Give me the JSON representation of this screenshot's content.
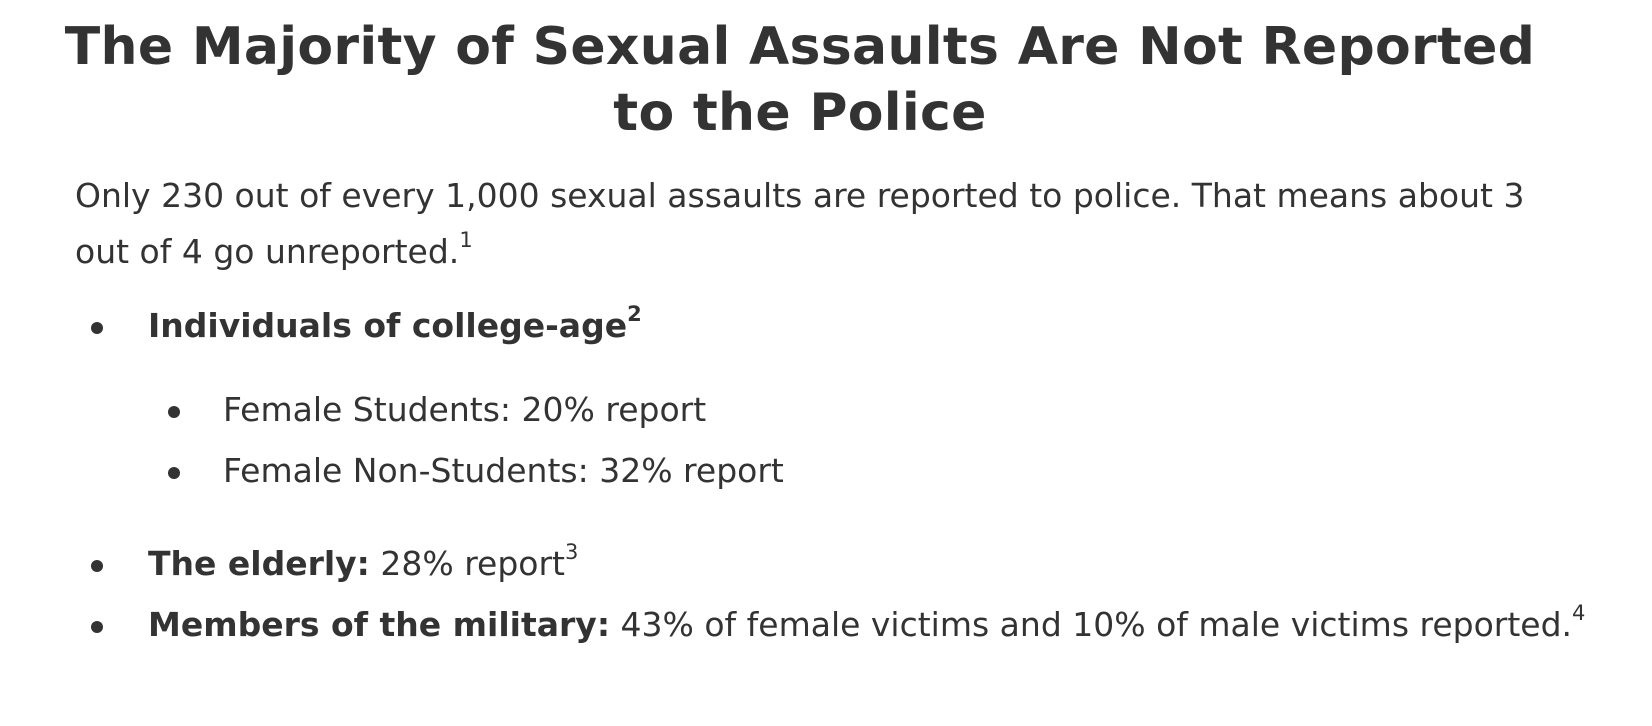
{
  "title": "The Majority of Sexual Assaults Are Not Reported to the Police",
  "intro": {
    "text": "Only 230 out of every 1,000 sexual assaults are reported to police. That means about 3 out of 4 go unreported.",
    "footnote": "1"
  },
  "list": {
    "college": {
      "label": "Individuals of college-age",
      "footnote": "2",
      "sub_items": [
        {
          "text": "Female Students: 20% report"
        },
        {
          "text": "Female Non-Students: 32% report"
        }
      ]
    },
    "elderly": {
      "label": "The elderly:",
      "text": " 28% report",
      "footnote": "3"
    },
    "military": {
      "label": "Members of the military:",
      "text": " 43% of female victims and 10% of male victims reported.",
      "footnote": "4"
    }
  }
}
